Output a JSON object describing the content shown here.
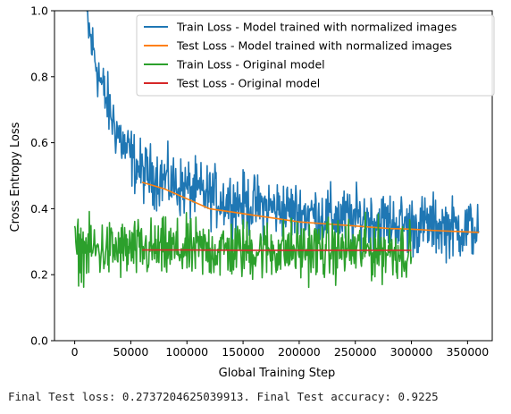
{
  "chart_data": {
    "type": "line",
    "title": "",
    "xlabel": "Global Training Step",
    "ylabel": "Cross Entropy Loss",
    "xlim": [
      -18000,
      372000
    ],
    "ylim": [
      0.0,
      1.0
    ],
    "xticks": [
      0,
      50000,
      100000,
      150000,
      200000,
      250000,
      300000,
      350000
    ],
    "yticks": [
      0.0,
      0.2,
      0.4,
      0.6,
      0.8,
      1.0
    ],
    "xtick_labels": [
      "0",
      "50000",
      "100000",
      "150000",
      "200000",
      "250000",
      "300000",
      "350000"
    ],
    "ytick_labels": [
      "0.0",
      "0.2",
      "0.4",
      "0.6",
      "0.8",
      "1.0"
    ],
    "grid": false,
    "legend_placement": "upper-right",
    "series": [
      {
        "name": "Train Loss - Model trained with normalized images",
        "color": "#1f77b4",
        "x": [
          10000,
          12000,
          15000,
          20000,
          25000,
          30000,
          35000,
          40000,
          45000,
          50000,
          55000,
          60000,
          70000,
          80000,
          90000,
          100000,
          120000,
          140000,
          160000,
          180000,
          200000,
          220000,
          240000,
          260000,
          280000,
          300000,
          320000,
          340000,
          360000
        ],
        "y": [
          1.0,
          0.95,
          0.9,
          0.83,
          0.76,
          0.71,
          0.66,
          0.62,
          0.58,
          0.56,
          0.53,
          0.51,
          0.5,
          0.49,
          0.47,
          0.46,
          0.44,
          0.42,
          0.41,
          0.4,
          0.39,
          0.38,
          0.37,
          0.37,
          0.36,
          0.35,
          0.35,
          0.34,
          0.34
        ],
        "noise": 0.045
      },
      {
        "name": "Test Loss - Model trained with normalized images",
        "color": "#ff7f0e",
        "x": [
          60000,
          80000,
          100000,
          120000,
          140000,
          160000,
          180000,
          200000,
          220000,
          240000,
          260000,
          280000,
          300000,
          320000,
          340000,
          360000
        ],
        "y": [
          0.48,
          0.46,
          0.43,
          0.4,
          0.39,
          0.38,
          0.37,
          0.36,
          0.355,
          0.35,
          0.345,
          0.34,
          0.338,
          0.334,
          0.331,
          0.328
        ],
        "noise": 0
      },
      {
        "name": "Train Loss - Original model",
        "color": "#2ca02c",
        "x": [
          0,
          50000,
          100000,
          150000,
          200000,
          250000,
          300000
        ],
        "y": [
          0.275,
          0.275,
          0.275,
          0.275,
          0.275,
          0.275,
          0.275
        ],
        "noise": 0.045
      },
      {
        "name": "Test Loss - Original model",
        "color": "#d62728",
        "x": [
          60000,
          100000,
          150000,
          200000,
          250000,
          300000
        ],
        "y": [
          0.275,
          0.275,
          0.274,
          0.274,
          0.274,
          0.274
        ],
        "noise": 0
      }
    ]
  },
  "output": {
    "text": "Final Test loss: 0.2737204625039913. Final Test accuracy: 0.9225"
  }
}
